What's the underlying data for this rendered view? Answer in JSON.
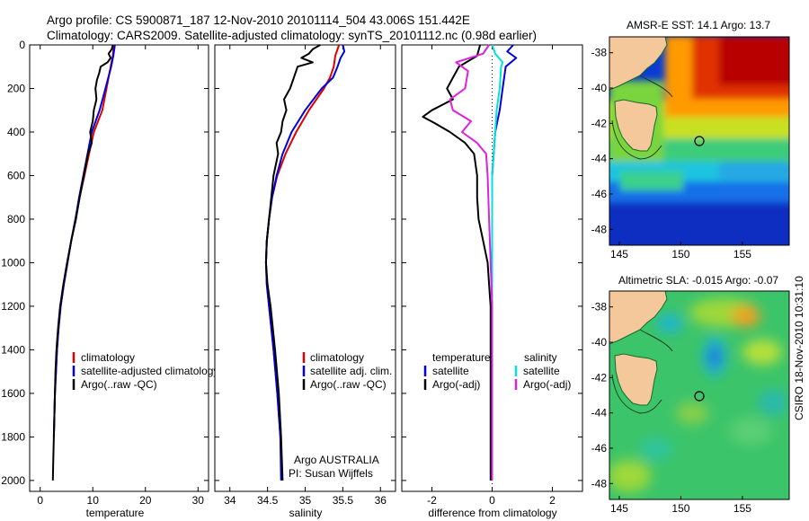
{
  "header": {
    "line1": "Argo profile: CS 5900871_187 12-Nov-2010 20101114_504 43.006S 151.442E",
    "line2": "Climatology: CARS2009. Satellite-adjusted climatology: synTS_20101112.nc (0.98d earlier)"
  },
  "credit": "CSIRO 18-Nov-2010 10:31:10",
  "colors": {
    "climatology": "#dd0000",
    "satellite": "#0000dd",
    "argo": "#000000",
    "satellite_diff": "#00e0e0",
    "argo_diff": "#e020e0",
    "land": "#f5c89c"
  },
  "chart_data": [
    {
      "id": "temperature",
      "type": "line",
      "xlabel": "temperature",
      "xlim": [
        -2,
        32
      ],
      "xticks": [
        0,
        10,
        20,
        30
      ],
      "ylim": [
        2050,
        0
      ],
      "yticks": [
        0,
        200,
        400,
        600,
        800,
        1000,
        1200,
        1400,
        1600,
        1800,
        2000
      ],
      "y_inverted": true,
      "legend": [
        "climatology",
        "satellite-adjusted climatology",
        "Argo(..raw -QC)"
      ],
      "legend_position": "lower-right",
      "series": [
        {
          "name": "climatology",
          "color": "#dd0000",
          "y": [
            0,
            50,
            100,
            200,
            300,
            400,
            500,
            600,
            700,
            800,
            900,
            1000,
            1100,
            1200,
            1300,
            1400,
            1500,
            1600,
            1700,
            1800
          ],
          "x": [
            14.0,
            13.8,
            13.4,
            12.6,
            11.8,
            10.2,
            9.3,
            8.4,
            7.5,
            6.7,
            5.9,
            5.2,
            4.5,
            3.9,
            3.5,
            3.2,
            3.0,
            2.8,
            2.7,
            2.6
          ]
        },
        {
          "name": "satellite-adjusted climatology",
          "color": "#0000dd",
          "y": [
            0,
            50,
            100,
            200,
            300,
            400,
            500,
            600,
            700,
            800,
            900,
            1000,
            1100,
            1200,
            1300,
            1400,
            1500,
            1600,
            1700,
            1800
          ],
          "x": [
            14.2,
            13.9,
            13.5,
            12.4,
            11.3,
            9.8,
            9.0,
            8.2,
            7.4,
            6.7,
            5.9,
            5.2,
            4.5,
            3.9,
            3.5,
            3.2,
            3.0,
            2.8,
            2.7,
            2.6
          ]
        },
        {
          "name": "Argo(..raw -QC)",
          "color": "#000000",
          "y": [
            0,
            20,
            40,
            60,
            80,
            100,
            130,
            160,
            200,
            250,
            300,
            350,
            400,
            450,
            500,
            600,
            700,
            800,
            900,
            1000,
            1100,
            1200,
            1300,
            1400,
            1500,
            1600,
            1700,
            1800,
            1900,
            2000
          ],
          "x": [
            13.8,
            13.6,
            13.0,
            13.4,
            12.8,
            11.5,
            11.2,
            10.8,
            10.5,
            10.7,
            10.2,
            10.0,
            9.5,
            9.8,
            9.1,
            8.3,
            7.5,
            6.8,
            5.9,
            5.1,
            4.4,
            3.8,
            3.4,
            3.1,
            2.9,
            2.8,
            2.7,
            2.6,
            2.5,
            2.4
          ]
        }
      ]
    },
    {
      "id": "salinity",
      "type": "line",
      "xlabel": "salinity",
      "xlim": [
        33.8,
        36.2
      ],
      "xticks": [
        34,
        34.5,
        35,
        35.5,
        36
      ],
      "ylim": [
        2050,
        0
      ],
      "y_inverted": true,
      "legend": [
        "climatology",
        "satellite adj. clim.",
        "Argo(..raw -QC)"
      ],
      "legend_position": "lower-right",
      "annotation": [
        "Argo AUSTRALIA",
        "PI: Susan Wijffels"
      ],
      "series": [
        {
          "name": "climatology",
          "color": "#dd0000",
          "y": [
            0,
            50,
            100,
            150,
            200,
            300,
            400,
            500,
            600,
            700,
            800,
            900,
            1000,
            1100,
            1200,
            1400,
            1600,
            1800,
            1900
          ],
          "x": [
            35.45,
            35.4,
            35.38,
            35.33,
            35.25,
            35.05,
            34.88,
            34.74,
            34.63,
            34.56,
            34.52,
            34.49,
            34.48,
            34.49,
            34.52,
            34.58,
            34.63,
            34.67,
            34.68
          ]
        },
        {
          "name": "satellite adj. clim.",
          "color": "#0000dd",
          "y": [
            0,
            30,
            60,
            100,
            150,
            200,
            300,
            400,
            500,
            600,
            700,
            800,
            900,
            1000,
            1100,
            1200,
            1400,
            1600,
            1800,
            2000
          ],
          "x": [
            35.5,
            35.52,
            35.47,
            35.43,
            35.37,
            35.22,
            35.0,
            34.82,
            34.7,
            34.62,
            34.56,
            34.52,
            34.49,
            34.48,
            34.49,
            34.52,
            34.58,
            34.63,
            34.67,
            34.68
          ]
        },
        {
          "name": "Argo(..raw -QC)",
          "color": "#000000",
          "y": [
            0,
            20,
            40,
            60,
            80,
            100,
            150,
            200,
            250,
            300,
            350,
            400,
            450,
            500,
            600,
            700,
            800,
            900,
            1000,
            1100,
            1200,
            1400,
            1600,
            1800,
            2000
          ],
          "x": [
            35.2,
            35.1,
            35.05,
            34.95,
            35.1,
            34.9,
            34.85,
            34.8,
            34.72,
            34.75,
            34.7,
            34.68,
            34.62,
            34.64,
            34.58,
            34.55,
            34.52,
            34.49,
            34.48,
            34.5,
            34.54,
            34.6,
            34.65,
            34.68,
            34.7
          ]
        }
      ]
    },
    {
      "id": "difference",
      "type": "line",
      "xlabel": "difference from climatology",
      "xlim": [
        -3,
        3
      ],
      "xticks": [
        -2,
        0,
        2
      ],
      "ylim": [
        2050,
        0
      ],
      "y_inverted": true,
      "legend_left_title": "temperature",
      "legend_right_title": "salinity",
      "legend": [
        "satellite",
        "Argo(-adj)",
        "satellite",
        "Argo(-adj)"
      ],
      "legend_position": "lower",
      "series": [
        {
          "name": "temperature satellite",
          "color": "#0000dd",
          "y": [
            0,
            30,
            60,
            100,
            200,
            300,
            400,
            500,
            600,
            800,
            1000,
            1200,
            1400,
            1600,
            1800,
            2000
          ],
          "x": [
            0.7,
            0.5,
            0.8,
            0.45,
            0.35,
            0.25,
            0.1,
            0.05,
            0.0,
            0.0,
            0.0,
            0.0,
            0.0,
            0.0,
            0.0,
            0.0
          ]
        },
        {
          "name": "temperature Argo(-adj)",
          "color": "#000000",
          "y": [
            0,
            50,
            100,
            150,
            200,
            250,
            300,
            330,
            360,
            400,
            450,
            500,
            600,
            700,
            800,
            900,
            1000,
            1100,
            1200,
            1400,
            1600,
            1800,
            2000
          ],
          "x": [
            -0.4,
            -0.5,
            -1.1,
            -1.3,
            -1.5,
            -1.3,
            -2.0,
            -2.3,
            -1.9,
            -1.4,
            -0.9,
            -0.6,
            -0.5,
            -0.5,
            -0.45,
            -0.3,
            -0.15,
            -0.1,
            -0.05,
            -0.05,
            -0.05,
            -0.05,
            -0.05
          ]
        },
        {
          "name": "salinity satellite",
          "color": "#00e0e0",
          "y": [
            0,
            40,
            80,
            100,
            200,
            300,
            400,
            500,
            600,
            800,
            1000,
            1200,
            1400,
            1600,
            1800,
            2000
          ],
          "x": [
            0.0,
            0.1,
            0.35,
            0.3,
            0.25,
            0.15,
            0.1,
            0.05,
            0.0,
            0.0,
            0.0,
            0.0,
            0.0,
            0.0,
            0.0,
            0.0
          ]
        },
        {
          "name": "salinity Argo(-adj)",
          "color": "#e020e0",
          "y": [
            0,
            40,
            80,
            120,
            200,
            250,
            300,
            350,
            400,
            450,
            500,
            600,
            800,
            1000,
            1200,
            1400,
            1600,
            1800,
            2000
          ],
          "x": [
            -0.1,
            -0.3,
            -1.2,
            -0.8,
            -0.9,
            -1.4,
            -1.3,
            -0.7,
            -1.0,
            -0.5,
            -0.2,
            -0.15,
            -0.1,
            -0.05,
            0.0,
            0.0,
            0.0,
            0.0,
            0.0
          ]
        }
      ]
    },
    {
      "id": "sst_map",
      "type": "heatmap",
      "title": "AMSR-E SST: 14.1  Argo: 13.7",
      "xlim": [
        144.2,
        158.8
      ],
      "ylim": [
        -48.9,
        -37.1
      ],
      "xticks": [
        145,
        150,
        155
      ],
      "yticks": [
        -38,
        -40,
        -42,
        -44,
        -46,
        -48
      ],
      "profile_location": {
        "lon": 151.442,
        "lat": -43.006
      }
    },
    {
      "id": "sla_map",
      "type": "heatmap",
      "title": "Altimetric SLA: -0.015  Argo: -0.07",
      "xlim": [
        144.2,
        158.8
      ],
      "ylim": [
        -48.9,
        -37.1
      ],
      "xticks": [
        145,
        150,
        155
      ],
      "yticks": [
        -38,
        -40,
        -42,
        -44,
        -46,
        -48
      ],
      "profile_location": {
        "lon": 151.442,
        "lat": -43.006
      }
    }
  ]
}
